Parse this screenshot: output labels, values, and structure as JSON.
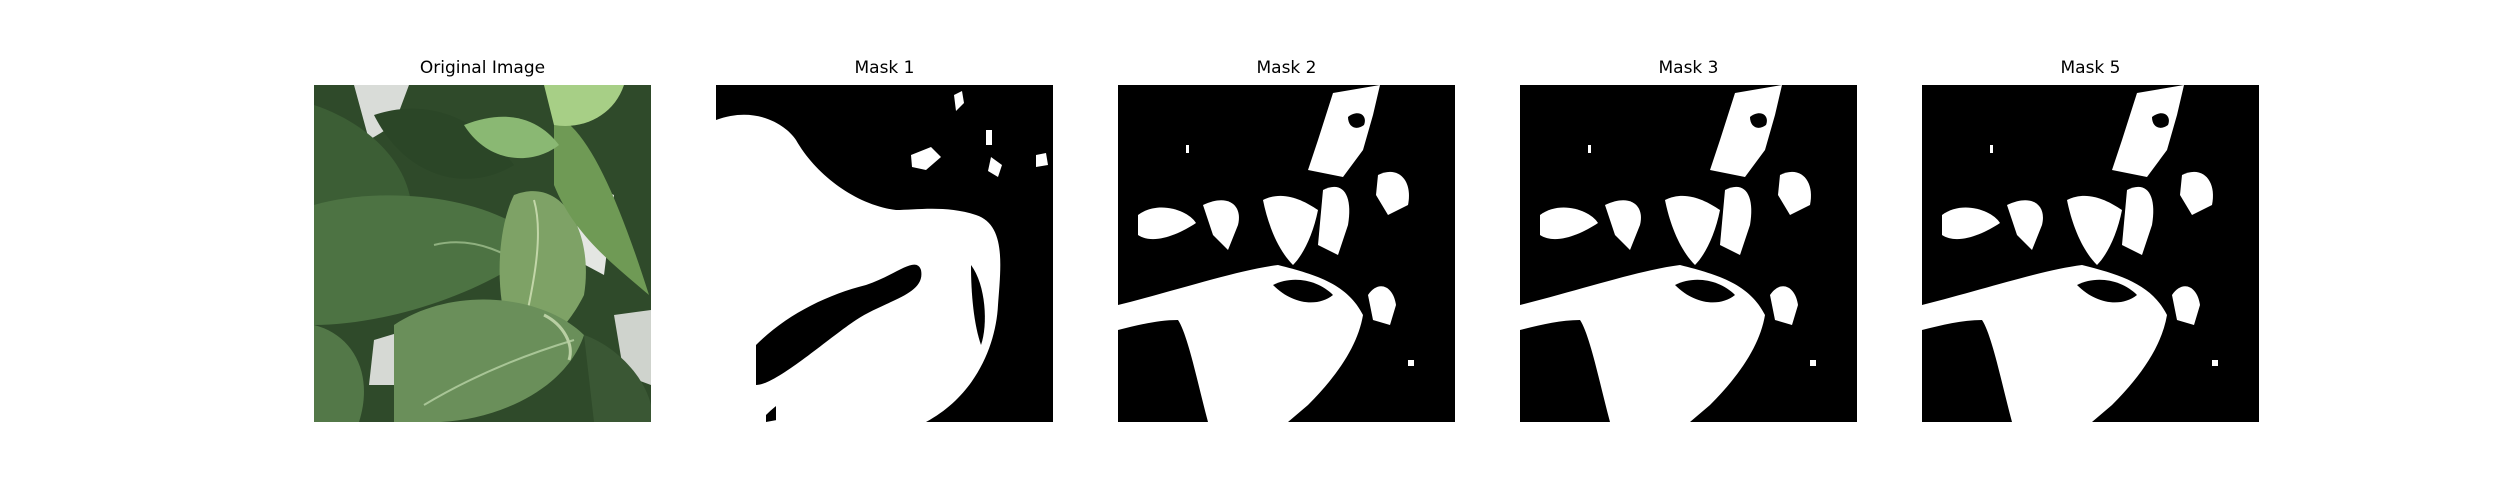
{
  "figure": {
    "panels": [
      {
        "title": "Original Image",
        "kind": "photo",
        "subject": "leaf-photo"
      },
      {
        "title": "Mask 1",
        "kind": "mask",
        "foreground_color": "#ffffff",
        "background_color": "#000000"
      },
      {
        "title": "Mask 2",
        "kind": "mask",
        "foreground_color": "#ffffff",
        "background_color": "#000000"
      },
      {
        "title": "Mask 3",
        "kind": "mask",
        "foreground_color": "#ffffff",
        "background_color": "#000000"
      },
      {
        "title": "Mask 5",
        "kind": "mask",
        "foreground_color": "#ffffff",
        "background_color": "#000000"
      }
    ]
  }
}
